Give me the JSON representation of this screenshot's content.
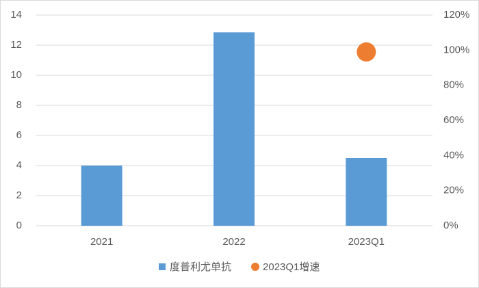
{
  "chart_data": {
    "type": "bar",
    "categories": [
      "2021",
      "2022",
      "2023Q1"
    ],
    "series": [
      {
        "name": "度普利尤单抗",
        "type": "bar",
        "color": "#5b9bd5",
        "values": [
          4.0,
          12.85,
          4.5
        ]
      },
      {
        "name": "2023Q1增速",
        "type": "scatter",
        "color": "#ed7d31",
        "axis": "y2",
        "values": [
          null,
          null,
          99
        ]
      }
    ],
    "ylim": [
      0,
      14
    ],
    "yticks": [
      0,
      2,
      4,
      6,
      8,
      10,
      12,
      14
    ],
    "y2lim": [
      0,
      120
    ],
    "y2ticks": [
      {
        "value": 0,
        "label": "0%"
      },
      {
        "value": 20,
        "label": "20%"
      },
      {
        "value": 40,
        "label": "40%"
      },
      {
        "value": 60,
        "label": "60%"
      },
      {
        "value": 80,
        "label": "80%"
      },
      {
        "value": 100,
        "label": "100%"
      },
      {
        "value": 120,
        "label": "120%"
      }
    ],
    "grid": true,
    "legend": "bottom"
  }
}
